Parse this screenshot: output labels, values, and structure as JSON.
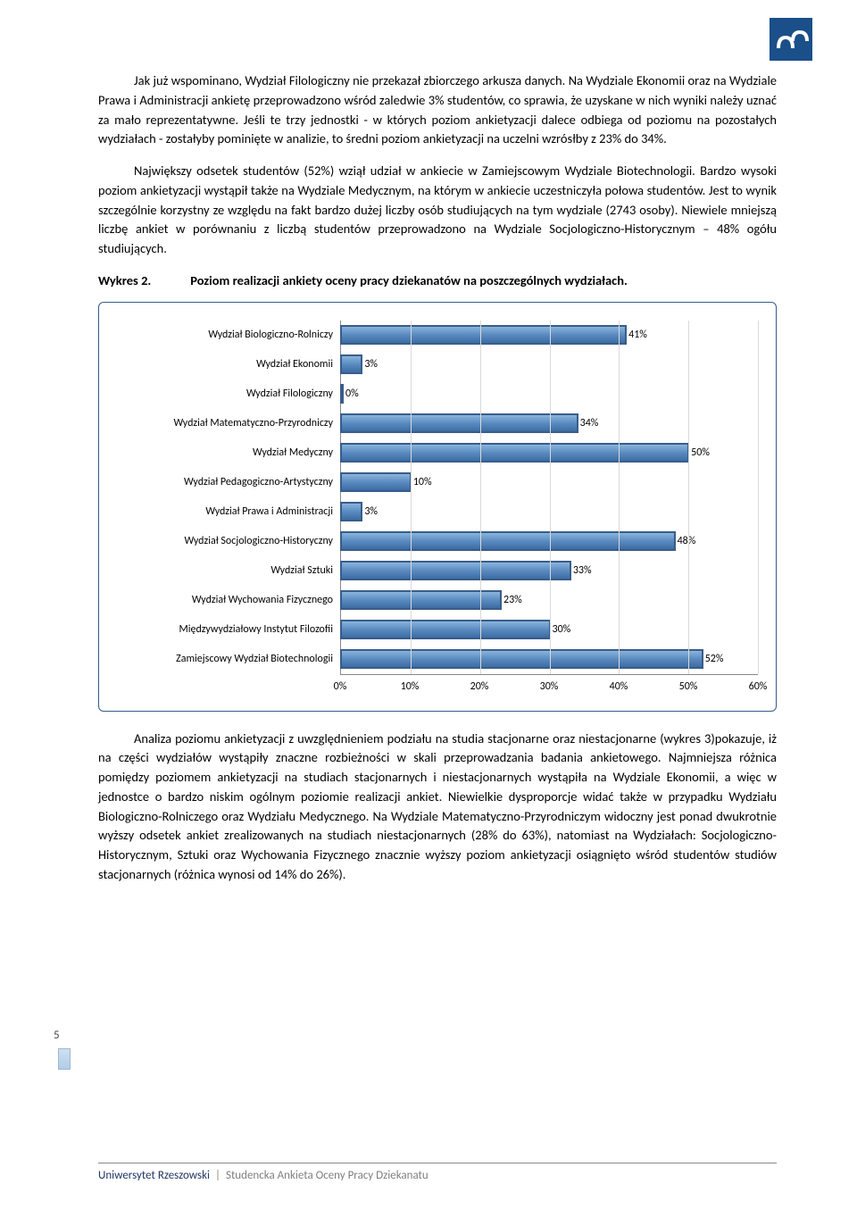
{
  "paragraphs": {
    "p1": "Jak już wspominano, Wydział Filologiczny nie przekazał zbiorczego arkusza danych. Na Wydziale Ekonomii oraz na Wydziale Prawa i Administracji ankietę przeprowadzono wśród zaledwie 3% studentów, co sprawia, że uzyskane w nich wyniki należy uznać za mało reprezentatywne. Jeśli te trzy jednostki - w których poziom ankietyzacji dalece odbiega od poziomu na pozostałych wydziałach - zostałyby pominięte w analizie, to średni poziom ankietyzacji na uczelni wzrósłby z 23% do 34%.",
    "p2": "Największy odsetek studentów (52%) wziął udział w ankiecie w Zamiejscowym Wydziale Biotechnologii. Bardzo wysoki poziom ankietyzacji wystąpił także na Wydziale Medycznym, na którym w ankiecie uczestniczyła połowa studentów. Jest to wynik szczególnie korzystny ze względu na fakt bardzo dużej liczby osób studiujących na tym wydziale (2743 osoby). Niewiele mniejszą liczbę ankiet w porównaniu z liczbą studentów przeprowadzono na Wydziale Socjologiczno-Historycznym – 48% ogółu studiujących.",
    "p3": "Analiza poziomu ankietyzacji z uwzględnieniem podziału na studia stacjonarne oraz niestacjonarne (wykres 3)pokazuje, iż na części wydziałów wystąpiły znaczne rozbieżności w skali przeprowadzania badania ankietowego. Najmniejsza różnica pomiędzy poziomem ankietyzacji na studiach stacjonarnych i niestacjonarnych wystąpiła na Wydziale Ekonomii, a więc w jednostce o bardzo niskim ogólnym poziomie realizacji ankiet. Niewielkie dysproporcje widać także w przypadku Wydziału Biologiczno-Rolniczego oraz Wydziału Medycznego. Na Wydziale Matematyczno-Przyrodniczym widoczny jest ponad dwukrotnie wyższy odsetek ankiet zrealizowanych na studiach niestacjonarnych (28% do 63%), natomiast na Wydziałach: Socjologiczno-Historycznym, Sztuki oraz Wychowania Fizycznego znacznie wyższy poziom ankietyzacji osiągnięto wśród studentów studiów stacjonarnych (różnica wynosi od 14% do 26%)."
  },
  "wykres_label": "Wykres 2.",
  "wykres_title": "Poziom realizacji ankiety oceny pracy dziekanatów na poszczególnych wydziałach.",
  "chart": {
    "type": "bar",
    "orientation": "horizontal",
    "xlim": [
      0,
      60
    ],
    "xtick_step": 10,
    "xticks": [
      "0%",
      "10%",
      "20%",
      "30%",
      "40%",
      "50%",
      "60%"
    ],
    "bar_fill": "#5a8bc0",
    "bar_border": "#385d8a",
    "grid_color": "#d9d9d9",
    "label_fontsize": 12,
    "categories": [
      "Wydział Biologiczno-Rolniczy",
      "Wydział Ekonomii",
      "Wydział Filologiczny",
      "Wydział Matematyczno-Przyrodniczy",
      "Wydział Medyczny",
      "Wydział Pedagogiczno-Artystyczny",
      "Wydział Prawa i Administracji",
      "Wydział Socjologiczno-Historyczny",
      "Wydział Sztuki",
      "Wydział Wychowania Fizycznego",
      "Międzywydziałowy Instytut Filozofii",
      "Zamiejscowy Wydział Biotechnologii"
    ],
    "values": [
      41,
      3,
      0,
      34,
      50,
      10,
      3,
      48,
      33,
      23,
      30,
      52
    ],
    "value_labels": [
      "41%",
      "3%",
      "0%",
      "34%",
      "50%",
      "10%",
      "3%",
      "48%",
      "33%",
      "23%",
      "30%",
      "52%"
    ]
  },
  "page_number": "5",
  "footer": {
    "university": "Uniwersytet Rzeszowski",
    "separator": "|",
    "subtitle": "Studencka Ankieta Oceny Pracy Dziekanatu"
  }
}
